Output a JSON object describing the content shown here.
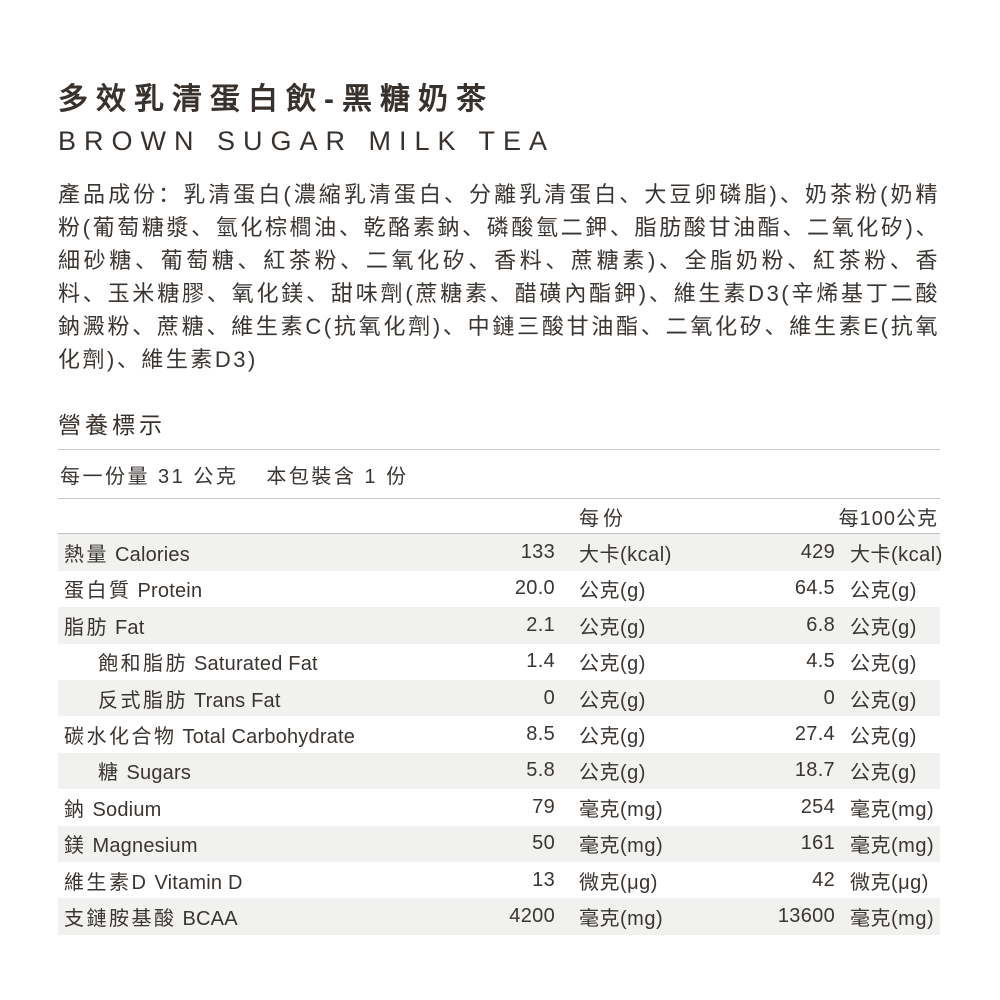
{
  "product": {
    "title_zh": "多效乳清蛋白飲-黑糖奶茶",
    "title_en": "BROWN SUGAR MILK TEA"
  },
  "ingredients": {
    "text": "產品成份：乳清蛋白(濃縮乳清蛋白、分離乳清蛋白、大豆卵磷脂)、奶茶粉(奶精粉(葡萄糖漿、氫化棕櫚油、乾酪素鈉、磷酸氫二鉀、脂肪酸甘油酯、二氧化矽)、細砂糖、葡萄糖、紅茶粉、二氧化矽、香料、蔗糖素)、全脂奶粉、紅茶粉、香料、玉米糖膠、氧化鎂、甜味劑(蔗糖素、醋磺內酯鉀)、維生素D3(辛烯基丁二酸鈉澱粉、蔗糖、維生素C(抗氧化劑)、中鏈三酸甘油酯、二氧化矽、維生素E(抗氧化劑)、維生素D3)"
  },
  "nutrition": {
    "section_title": "營養標示",
    "serving_size": "每一份量 31 公克",
    "servings_per_package": "本包裝含 1 份",
    "col_per_serving": "每份",
    "col_per_100g": "每100公克",
    "rows": [
      {
        "zh": "熱量",
        "en": "Calories",
        "v1": "133",
        "u1": "大卡(kcal)",
        "v2": "429",
        "u2": "大卡(kcal)",
        "indent": false
      },
      {
        "zh": "蛋白質",
        "en": "Protein",
        "v1": "20.0",
        "u1": "公克(g)",
        "v2": "64.5",
        "u2": "公克(g)",
        "indent": false
      },
      {
        "zh": "脂肪",
        "en": "Fat",
        "v1": "2.1",
        "u1": "公克(g)",
        "v2": "6.8",
        "u2": "公克(g)",
        "indent": false
      },
      {
        "zh": "飽和脂肪",
        "en": "Saturated Fat",
        "v1": "1.4",
        "u1": "公克(g)",
        "v2": "4.5",
        "u2": "公克(g)",
        "indent": true
      },
      {
        "zh": "反式脂肪",
        "en": "Trans Fat",
        "v1": "0",
        "u1": "公克(g)",
        "v2": "0",
        "u2": "公克(g)",
        "indent": true
      },
      {
        "zh": "碳水化合物",
        "en": "Total Carbohydrate",
        "v1": "8.5",
        "u1": "公克(g)",
        "v2": "27.4",
        "u2": "公克(g)",
        "indent": false
      },
      {
        "zh": "糖",
        "en": "Sugars",
        "v1": "5.8",
        "u1": "公克(g)",
        "v2": "18.7",
        "u2": "公克(g)",
        "indent": true
      },
      {
        "zh": "鈉",
        "en": "Sodium",
        "v1": "79",
        "u1": "毫克(mg)",
        "v2": "254",
        "u2": "毫克(mg)",
        "indent": false
      },
      {
        "zh": "鎂",
        "en": "Magnesium",
        "v1": "50",
        "u1": "毫克(mg)",
        "v2": "161",
        "u2": "毫克(mg)",
        "indent": false
      },
      {
        "zh": "維生素D",
        "en": "Vitamin D",
        "v1": "13",
        "u1": "微克(μg)",
        "v2": "42",
        "u2": "微克(μg)",
        "indent": false
      },
      {
        "zh": "支鏈胺基酸",
        "en": "BCAA",
        "v1": "4200",
        "u1": "毫克(mg)",
        "v2": "13600",
        "u2": "毫克(mg)",
        "indent": false
      }
    ]
  },
  "colors": {
    "text": "#3a3531",
    "divider": "#c9c7c4",
    "row_shade": "#f1f1ef"
  }
}
